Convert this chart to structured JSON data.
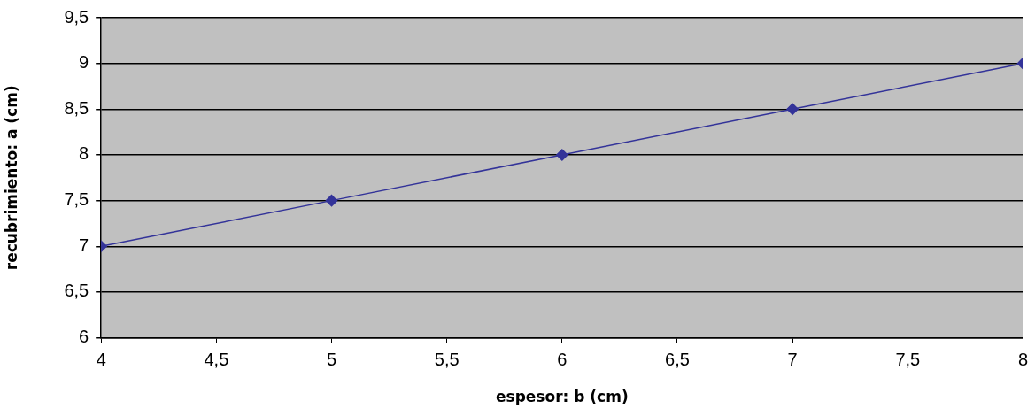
{
  "chart_data": {
    "type": "line",
    "xlabel": "espesor: b (cm)",
    "ylabel": "recubrimiento: a (cm)",
    "x": [
      4,
      5,
      6,
      7,
      8
    ],
    "series": [
      {
        "color": "#333399",
        "values": [
          7,
          7.5,
          8,
          8.5,
          9
        ]
      }
    ],
    "xlim": [
      4,
      8
    ],
    "ylim": [
      6,
      9.5
    ],
    "xticks": [
      4,
      {
        "value": 4.5,
        "label": "4,5"
      },
      5,
      {
        "value": 5.5,
        "label": "5,5"
      },
      6,
      {
        "value": 6.5,
        "label": "6,5"
      },
      7,
      {
        "value": 7.5,
        "label": "7,5"
      },
      8
    ],
    "yticks": [
      6,
      {
        "value": 6.5,
        "label": "6,5"
      },
      7,
      {
        "value": 7.5,
        "label": "7,5"
      },
      8,
      {
        "value": 8.5,
        "label": "8,5"
      },
      9,
      {
        "value": 9.5,
        "label": "9,5"
      }
    ],
    "grid": "y",
    "legend": false,
    "marker": "diamond",
    "line_style": "solid"
  }
}
